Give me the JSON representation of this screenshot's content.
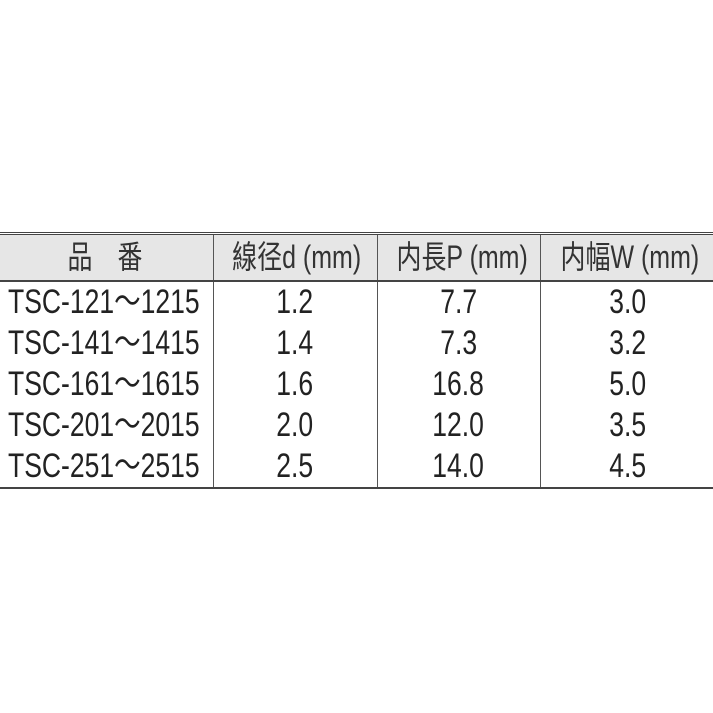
{
  "table": {
    "headers": [
      "品　番",
      "線径d (mm)",
      "内長P (mm)",
      "内幅W (mm)"
    ],
    "rows": [
      [
        "TSC-121～1215",
        "1.2",
        "7.7",
        "3.0"
      ],
      [
        "TSC-141～1415",
        "1.4",
        "7.3",
        "3.2"
      ],
      [
        "TSC-161～1615",
        "1.6",
        "16.8",
        "5.0"
      ],
      [
        "TSC-201～2015",
        "2.0",
        "12.0",
        "3.5"
      ],
      [
        "TSC-251～2515",
        "2.5",
        "14.0",
        "4.5"
      ]
    ]
  }
}
